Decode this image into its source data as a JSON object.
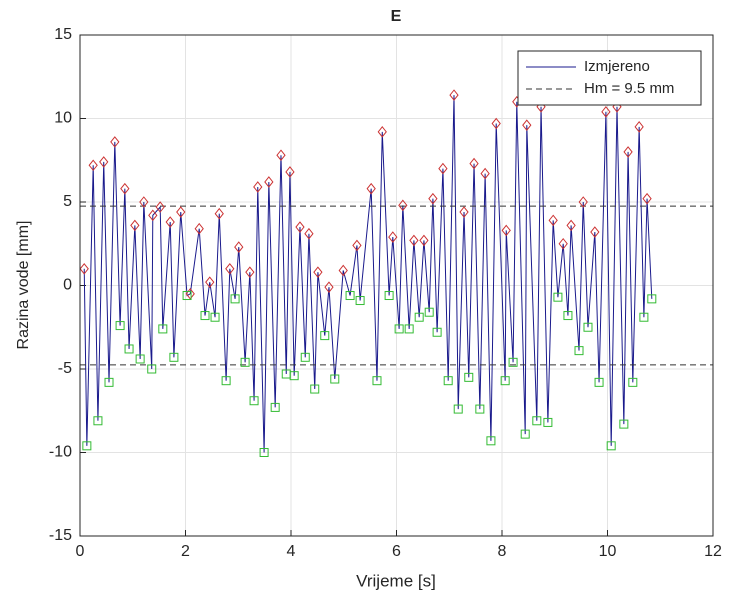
{
  "chart_data": {
    "type": "line",
    "title": "E",
    "xlabel": "Vrijeme [s]",
    "ylabel": "Razina vode [mm]",
    "xlim": [
      0,
      12
    ],
    "ylim": [
      -15,
      15
    ],
    "xticks": [
      0,
      2,
      4,
      6,
      8,
      10,
      12
    ],
    "yticks": [
      -15,
      -10,
      -5,
      0,
      5,
      10,
      15
    ],
    "grid": true,
    "legend": "top-right",
    "series": [
      {
        "name": "Izmjereno",
        "color": "#1a1a8c",
        "style": "solid",
        "x": [
          0.08,
          0.13,
          0.25,
          0.34,
          0.45,
          0.55,
          0.66,
          0.76,
          0.85,
          0.93,
          1.04,
          1.14,
          1.21,
          1.36,
          1.38,
          1.52,
          1.57,
          1.71,
          1.78,
          1.91,
          2.03,
          2.09,
          2.26,
          2.37,
          2.46,
          2.56,
          2.64,
          2.77,
          2.84,
          2.94,
          3.01,
          3.13,
          3.22,
          3.3,
          3.37,
          3.49,
          3.58,
          3.7,
          3.81,
          3.91,
          3.98,
          4.06,
          4.17,
          4.27,
          4.34,
          4.45,
          4.51,
          4.64,
          4.72,
          4.83,
          4.99,
          5.12,
          5.25,
          5.31,
          5.52,
          5.63,
          5.73,
          5.86,
          5.93,
          6.05,
          6.12,
          6.24,
          6.33,
          6.43,
          6.52,
          6.62,
          6.69,
          6.77,
          6.88,
          6.98,
          7.09,
          7.17,
          7.28,
          7.37,
          7.47,
          7.58,
          7.68,
          7.79,
          7.89,
          8.06,
          8.08,
          8.21,
          8.28,
          8.44,
          8.47,
          8.66,
          8.74,
          8.87,
          8.97,
          9.06,
          9.16,
          9.25,
          9.31,
          9.46,
          9.54,
          9.63,
          9.76,
          9.84,
          9.97,
          10.07,
          10.18,
          10.31,
          10.39,
          10.48,
          10.6,
          10.69,
          10.75,
          10.84
        ],
        "values": [
          1.0,
          -9.6,
          7.2,
          -8.1,
          7.4,
          -5.8,
          8.6,
          -2.4,
          5.8,
          -3.8,
          3.6,
          -4.4,
          5.0,
          -5.0,
          4.2,
          4.7,
          -2.6,
          3.8,
          -4.3,
          4.4,
          -0.6,
          -0.5,
          3.4,
          -1.8,
          0.2,
          -1.9,
          4.3,
          -5.7,
          1.0,
          -0.8,
          2.3,
          -4.6,
          0.8,
          -6.9,
          5.9,
          -10.0,
          6.2,
          -7.3,
          7.8,
          -5.3,
          6.8,
          -5.4,
          3.5,
          -4.3,
          3.1,
          -6.2,
          0.8,
          -3.0,
          -0.1,
          -5.6,
          0.9,
          -0.6,
          2.4,
          -0.9,
          5.8,
          -5.7,
          9.2,
          -0.6,
          2.9,
          -2.6,
          4.8,
          -2.6,
          2.7,
          -1.9,
          2.7,
          -1.6,
          5.2,
          -2.8,
          7.0,
          -5.7,
          11.4,
          -7.4,
          4.4,
          -5.5,
          7.3,
          -7.4,
          6.7,
          -9.3,
          9.7,
          -5.7,
          3.3,
          -4.6,
          11.0,
          -8.9,
          9.6,
          -8.1,
          10.7,
          -8.2,
          3.9,
          -0.7,
          2.5,
          -1.8,
          3.6,
          -3.9,
          5.0,
          -2.5,
          3.2,
          -5.8,
          10.4,
          -9.6,
          10.7,
          -8.3,
          8.0,
          -5.8,
          9.5,
          -1.9,
          5.2,
          -0.8
        ]
      },
      {
        "name": "Hm = 9.5 mm",
        "color": "#333333",
        "style": "dashed",
        "values": [
          4.75,
          -4.75
        ]
      },
      {
        "color": "#cc3333",
        "marker": "diamond",
        "x": [
          0.08,
          0.25,
          0.45,
          0.66,
          0.85,
          1.04,
          1.21,
          1.38,
          1.52,
          1.71,
          1.91,
          2.09,
          2.26,
          2.46,
          2.64,
          2.84,
          3.01,
          3.22,
          3.37,
          3.58,
          3.81,
          3.98,
          4.17,
          4.34,
          4.51,
          4.72,
          4.99,
          5.25,
          5.52,
          5.73,
          5.93,
          6.12,
          6.33,
          6.52,
          6.69,
          6.88,
          7.09,
          7.28,
          7.47,
          7.68,
          7.89,
          8.08,
          8.28,
          8.47,
          8.74,
          8.97,
          9.16,
          9.31,
          9.54,
          9.76,
          9.97,
          10.18,
          10.39,
          10.6,
          10.75
        ],
        "values": [
          1.0,
          7.2,
          7.4,
          8.6,
          5.8,
          3.6,
          5.0,
          4.2,
          4.7,
          3.8,
          4.4,
          -0.5,
          3.4,
          0.2,
          4.3,
          1.0,
          2.3,
          0.8,
          5.9,
          6.2,
          7.8,
          6.8,
          3.5,
          3.1,
          0.8,
          -0.1,
          0.9,
          2.4,
          5.8,
          9.2,
          2.9,
          4.8,
          2.7,
          2.7,
          5.2,
          7.0,
          11.4,
          4.4,
          7.3,
          6.7,
          9.7,
          3.3,
          11.0,
          9.6,
          10.7,
          3.9,
          2.5,
          3.6,
          5.0,
          3.2,
          10.4,
          10.7,
          8.0,
          9.5,
          5.2
        ]
      },
      {
        "color": "#33bb33",
        "marker": "square",
        "x": [
          0.13,
          0.34,
          0.55,
          0.76,
          0.93,
          1.14,
          1.36,
          1.57,
          1.78,
          2.03,
          2.37,
          2.56,
          2.77,
          2.94,
          3.13,
          3.3,
          3.49,
          3.7,
          3.91,
          4.06,
          4.27,
          4.45,
          4.64,
          4.83,
          5.12,
          5.31,
          5.63,
          5.86,
          6.05,
          6.24,
          6.43,
          6.62,
          6.77,
          6.98,
          7.17,
          7.37,
          7.58,
          7.79,
          8.06,
          8.21,
          8.44,
          8.66,
          8.87,
          9.06,
          9.25,
          9.46,
          9.63,
          9.84,
          10.07,
          10.31,
          10.48,
          10.69,
          10.84
        ],
        "values": [
          -9.6,
          -8.1,
          -5.8,
          -2.4,
          -3.8,
          -4.4,
          -5.0,
          -2.6,
          -4.3,
          -0.6,
          -1.8,
          -1.9,
          -5.7,
          -0.8,
          -4.6,
          -6.9,
          -10.0,
          -7.3,
          -5.3,
          -5.4,
          -4.3,
          -6.2,
          -3.0,
          -5.6,
          -0.6,
          -0.9,
          -5.7,
          -0.6,
          -2.6,
          -2.6,
          -1.9,
          -1.6,
          -2.8,
          -5.7,
          -7.4,
          -5.5,
          -7.4,
          -9.3,
          -5.7,
          -4.6,
          -8.9,
          -8.1,
          -8.2,
          -0.7,
          -1.8,
          -3.9,
          -2.5,
          -5.8,
          -9.6,
          -8.3,
          -5.8,
          -1.9,
          -0.8
        ]
      }
    ]
  }
}
